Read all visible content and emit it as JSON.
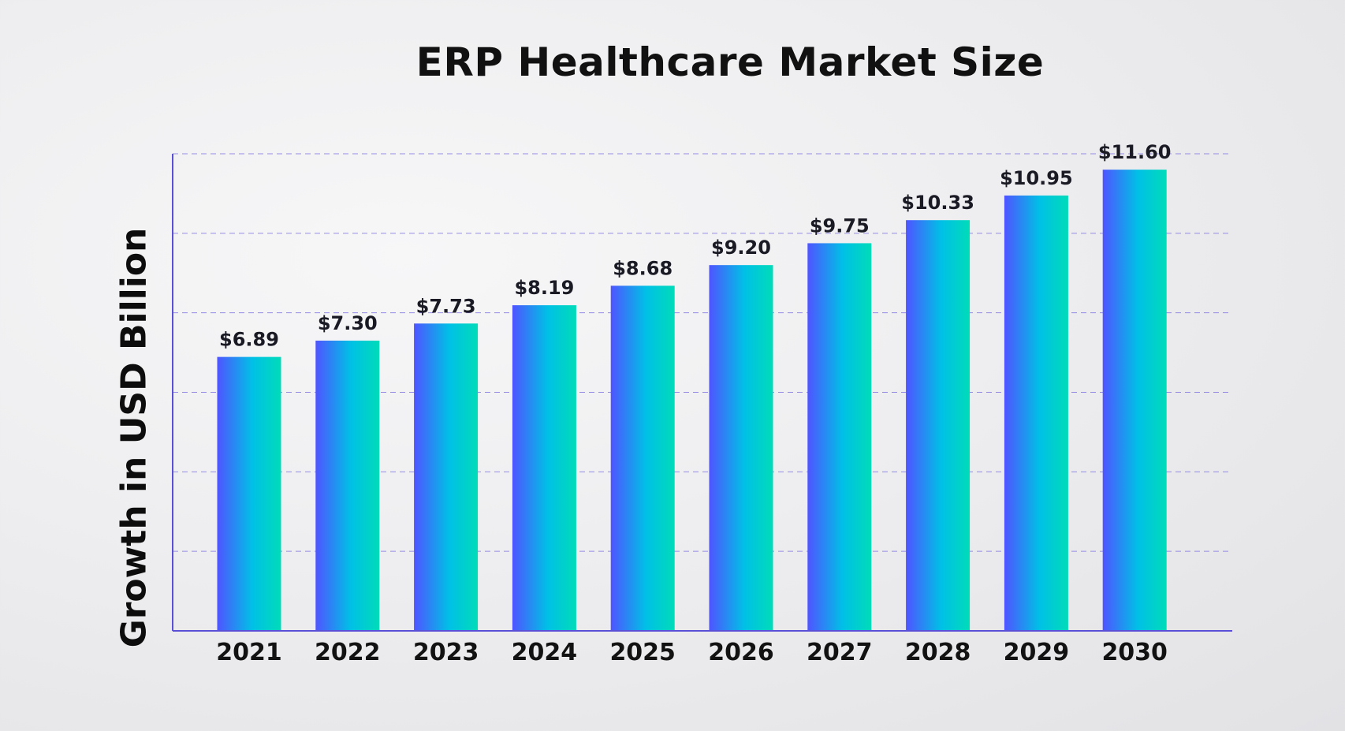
{
  "chart_data": {
    "type": "bar",
    "title": "ERP Healthcare Market Size",
    "xlabel": "",
    "ylabel": "Growth in USD Billion",
    "categories": [
      "2021",
      "2022",
      "2023",
      "2024",
      "2025",
      "2026",
      "2027",
      "2028",
      "2029",
      "2030"
    ],
    "values": [
      6.89,
      7.3,
      7.73,
      8.19,
      8.68,
      9.2,
      9.75,
      10.33,
      10.95,
      11.6
    ],
    "data_labels": [
      "$6.89",
      "$7.30",
      "$7.73",
      "$8.19",
      "$8.68",
      "$9.20",
      "$9.75",
      "$10.33",
      "$10.95",
      "$11.60"
    ],
    "ylim": [
      0,
      12
    ],
    "grid": true,
    "legend": "none",
    "colors": {
      "bar_gradient_start": "#4f54ff",
      "bar_gradient_mid": "#00c0e6",
      "bar_gradient_end": "#00dcb8",
      "axis": "#5a50d8",
      "grid": "#8a80e8",
      "text": "#111111"
    }
  }
}
